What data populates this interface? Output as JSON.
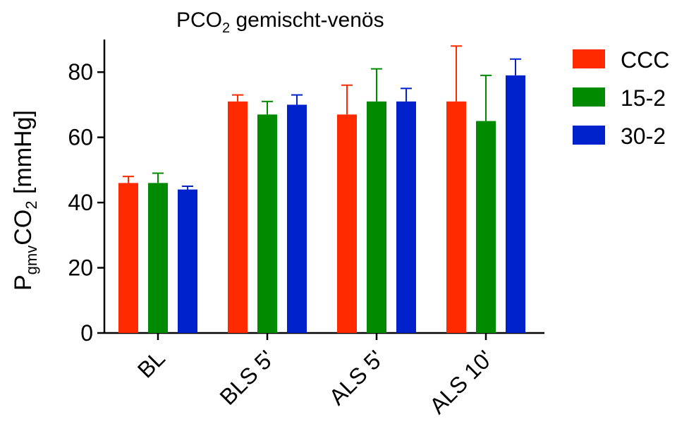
{
  "chart_data": {
    "type": "bar",
    "title": {
      "main": "PCO",
      "sub": "2",
      "rest": " gemischt-venös"
    },
    "ylabel": {
      "p": "P",
      "sub1": "gmv",
      "mid": "CO",
      "sub2": "2",
      "rest": " [mmHg]"
    },
    "xlabel": "",
    "ylim": [
      0,
      90
    ],
    "yticks": [
      0,
      20,
      40,
      60,
      80
    ],
    "categories": [
      "BL",
      "BLS 5'",
      "ALS 5'",
      "ALS 10'"
    ],
    "series": [
      {
        "name": "CCC",
        "color": "#ff2a00",
        "values": [
          46,
          71,
          67,
          71
        ],
        "errors": [
          2,
          2,
          9,
          17
        ]
      },
      {
        "name": "15-2",
        "color": "#008a00",
        "values": [
          46,
          67,
          71,
          65
        ],
        "errors": [
          3,
          4,
          10,
          14
        ]
      },
      {
        "name": "30-2",
        "color": "#0022cc",
        "values": [
          44,
          70,
          71,
          79
        ],
        "errors": [
          1,
          3,
          4,
          5
        ]
      }
    ],
    "legend": "top-right",
    "grid": false
  }
}
